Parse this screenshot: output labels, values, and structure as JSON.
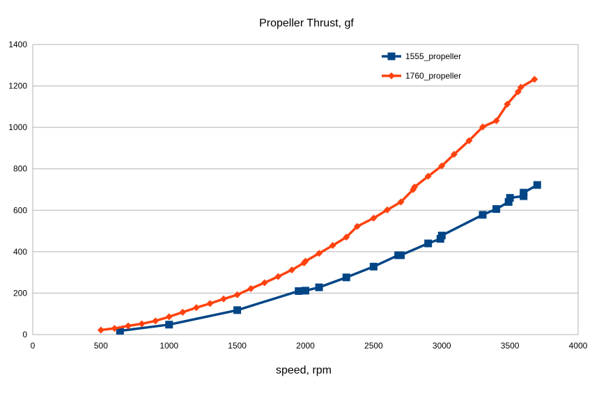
{
  "chart_data": {
    "type": "scatter",
    "title": "Propeller Thrust, gf",
    "xlabel": "speed, rpm",
    "ylabel": "",
    "xlim": [
      0,
      4000
    ],
    "ylim": [
      0,
      1400
    ],
    "xticks": [
      0,
      500,
      1000,
      1500,
      2000,
      2500,
      3000,
      3500,
      4000
    ],
    "yticks": [
      0,
      200,
      400,
      600,
      800,
      1000,
      1200,
      1400
    ],
    "grid": "horizontal",
    "legend_position": "top-right",
    "series": [
      {
        "name": "1555_propeller",
        "color": "#004586",
        "marker": "square",
        "points": [
          [
            640,
            18
          ],
          [
            1000,
            48
          ],
          [
            1500,
            118
          ],
          [
            1950,
            210
          ],
          [
            2000,
            212
          ],
          [
            2100,
            228
          ],
          [
            2300,
            276
          ],
          [
            2500,
            328
          ],
          [
            2680,
            383
          ],
          [
            2700,
            383
          ],
          [
            2900,
            440
          ],
          [
            2990,
            462
          ],
          [
            3000,
            478
          ],
          [
            3300,
            578
          ],
          [
            3400,
            606
          ],
          [
            3490,
            640
          ],
          [
            3500,
            660
          ],
          [
            3600,
            668
          ],
          [
            3600,
            685
          ],
          [
            3700,
            722
          ]
        ]
      },
      {
        "name": "1760_propeller",
        "color": "#ff420e",
        "marker": "diamond",
        "points": [
          [
            500,
            22
          ],
          [
            600,
            30
          ],
          [
            700,
            42
          ],
          [
            800,
            52
          ],
          [
            900,
            66
          ],
          [
            1000,
            86
          ],
          [
            1100,
            108
          ],
          [
            1200,
            130
          ],
          [
            1300,
            150
          ],
          [
            1400,
            172
          ],
          [
            1500,
            192
          ],
          [
            1600,
            222
          ],
          [
            1700,
            250
          ],
          [
            1800,
            280
          ],
          [
            1900,
            312
          ],
          [
            1990,
            346
          ],
          [
            2000,
            354
          ],
          [
            2100,
            392
          ],
          [
            2200,
            430
          ],
          [
            2300,
            470
          ],
          [
            2380,
            522
          ],
          [
            2500,
            562
          ],
          [
            2600,
            602
          ],
          [
            2700,
            640
          ],
          [
            2790,
            700
          ],
          [
            2800,
            712
          ],
          [
            2900,
            764
          ],
          [
            3000,
            814
          ],
          [
            3090,
            870
          ],
          [
            3200,
            936
          ],
          [
            3300,
            1002
          ],
          [
            3400,
            1032
          ],
          [
            3480,
            1112
          ],
          [
            3560,
            1172
          ],
          [
            3580,
            1194
          ],
          [
            3680,
            1232
          ]
        ]
      }
    ]
  }
}
